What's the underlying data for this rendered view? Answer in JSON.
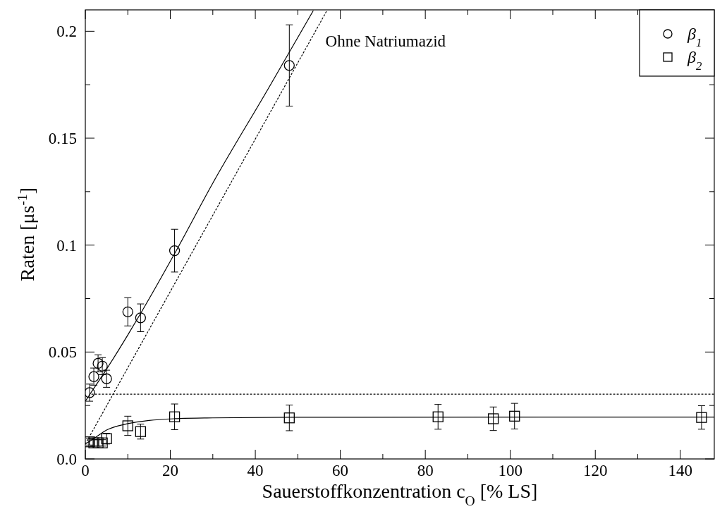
{
  "chart_data": {
    "type": "scatter",
    "xlabel": "Sauerstoffkonzentration c$_{O}$ [% LS]",
    "ylabel": "Raten [μs$^{-1}$]",
    "annotations": [
      "Ohne Natriumazid"
    ],
    "legend": "top right",
    "xlim": [
      0,
      148
    ],
    "ylim": [
      0,
      0.21
    ],
    "xticks": [
      0,
      {
        "value": 10,
        "label": null
      },
      20,
      {
        "value": 30,
        "label": null
      },
      40,
      {
        "value": 50,
        "label": null
      },
      60,
      {
        "value": 70,
        "label": null
      },
      80,
      {
        "value": 90,
        "label": null
      },
      100,
      {
        "value": 110,
        "label": null
      },
      120,
      {
        "value": 130,
        "label": null
      },
      140
    ],
    "yticks": [
      {
        "value": 0,
        "label": "0.0"
      },
      {
        "value": 0.025,
        "label": null
      },
      0.05,
      {
        "value": 0.075,
        "label": null
      },
      0.1,
      {
        "value": 0.125,
        "label": null
      },
      0.15,
      {
        "value": 0.175,
        "label": null
      },
      0.2
    ],
    "series": [
      {
        "name": "β$_{1}$",
        "marker": "circle",
        "color": "#000000",
        "x": [
          1,
          2,
          3,
          4,
          5,
          10,
          13,
          21,
          48
        ],
        "values": [
          0.031,
          0.0385,
          0.0447,
          0.0434,
          0.0375,
          0.0688,
          0.066,
          0.0974,
          0.184
        ],
        "errors": [
          0.004,
          0.004,
          0.004,
          0.004,
          0.004,
          0.0066,
          0.0065,
          0.01,
          0.019
        ]
      },
      {
        "name": "β$_{2}$",
        "marker": "square",
        "color": "#000000",
        "x": [
          1,
          2,
          3,
          4,
          5,
          10,
          13,
          21,
          48,
          83,
          96,
          101,
          145
        ],
        "values": [
          0.008,
          0.0075,
          0.0075,
          0.0075,
          0.0095,
          0.0155,
          0.0128,
          0.0197,
          0.0192,
          0.0197,
          0.0188,
          0.02,
          0.0194
        ],
        "errors": [
          0.0015,
          0.0015,
          0.0015,
          0.0015,
          0.0025,
          0.0045,
          0.0035,
          0.006,
          0.006,
          0.0058,
          0.0055,
          0.006,
          0.0055
        ]
      },
      {
        "type": "line",
        "marker": "none",
        "line_style": "solid",
        "color": "#000000",
        "x": [
          0,
          2,
          5,
          10,
          13,
          21,
          30,
          43,
          53.6
        ],
        "values": [
          0.027,
          0.033,
          0.042,
          0.058,
          0.068,
          0.096,
          0.129,
          0.173,
          0.2095
        ]
      },
      {
        "type": "line",
        "marker": "none",
        "line_style": "dotted",
        "color": "#000000",
        "x": [
          0,
          56.8
        ],
        "values": [
          0.007,
          0.2095
        ]
      },
      {
        "type": "line",
        "marker": "none",
        "line_style": "dotted",
        "color": "#000000",
        "x": [
          1.5,
          148
        ],
        "values": [
          0.0303,
          0.0303
        ]
      },
      {
        "type": "line",
        "marker": "none",
        "line_style": "solid",
        "color": "#000000",
        "x": [
          0,
          2,
          5,
          10,
          15,
          21,
          30,
          48,
          148
        ],
        "values": [
          0.007,
          0.0095,
          0.0135,
          0.0165,
          0.018,
          0.0188,
          0.0192,
          0.0195,
          0.0196
        ]
      }
    ]
  }
}
